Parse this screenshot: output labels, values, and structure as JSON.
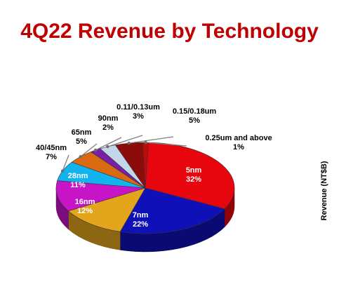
{
  "chart_data": {
    "type": "pie",
    "title": "4Q22 Revenue by Technology",
    "ylabel": "Revenue (NT$B)",
    "slices": [
      {
        "label": "5nm",
        "percent_text": "32%",
        "value": 32,
        "color": "#e8060e"
      },
      {
        "label": "7nm",
        "percent_text": "22%",
        "value": 22,
        "color": "#1010b8"
      },
      {
        "label": "16nm",
        "percent_text": "12%",
        "value": 12,
        "color": "#e3a51c"
      },
      {
        "label": "28nm",
        "percent_text": "11%",
        "value": 11,
        "color": "#c614c6"
      },
      {
        "label": "40/45nm",
        "percent_text": "7%",
        "value": 7,
        "color": "#12b4f0"
      },
      {
        "label": "65nm",
        "percent_text": "5%",
        "value": 5,
        "color": "#d96a12"
      },
      {
        "label": "90nm",
        "percent_text": "2%",
        "value": 2,
        "color": "#7a1fa8"
      },
      {
        "label": "0.11/0.13um",
        "percent_text": "3%",
        "value": 3,
        "color": "#c3d6ea"
      },
      {
        "label": "0.15/0.18um",
        "percent_text": "5%",
        "value": 5,
        "color": "#8c0c0c"
      },
      {
        "label": "0.25um and above",
        "percent_text": "1%",
        "value": 1,
        "color": "#c00a0a"
      }
    ]
  }
}
